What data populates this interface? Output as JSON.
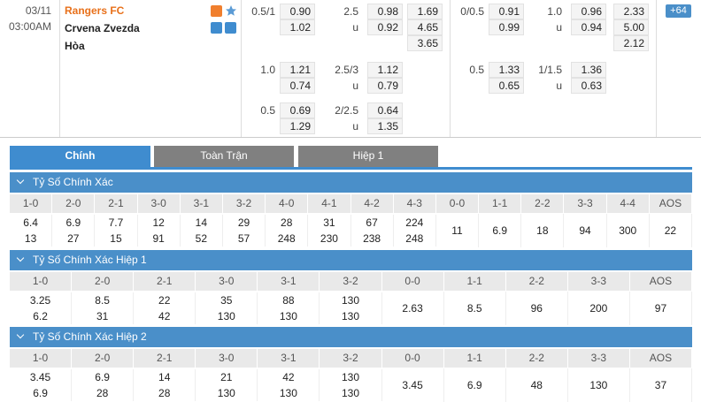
{
  "match": {
    "date": "03/11",
    "time": "03:00AM",
    "home": "Rangers FC",
    "away": "Crvena Zvezda",
    "draw": "Hòa"
  },
  "full_time": {
    "rows": [
      {
        "handicap": "0.5/1",
        "home": "0.90",
        "away": "1.02",
        "total": "2.5",
        "over": "0.98",
        "under_mark": "u",
        "under": "0.92"
      },
      {
        "handicap": "1.0",
        "home": "1.21",
        "away": "0.74",
        "total": "2.5/3",
        "over": "1.12",
        "under_mark": "u",
        "under": "0.79"
      },
      {
        "handicap": "0.5",
        "home": "0.69",
        "away": "1.29",
        "total": "2/2.5",
        "over": "0.64",
        "under_mark": "u",
        "under": "1.35"
      }
    ],
    "one_x_two": [
      "1.69",
      "4.65",
      "3.65"
    ]
  },
  "half_time": {
    "rows": [
      {
        "handicap": "0/0.5",
        "home": "0.91",
        "away": "0.99",
        "total": "1.0",
        "over": "0.96",
        "under_mark": "u",
        "under": "0.94"
      },
      {
        "handicap": "0.5",
        "home": "1.33",
        "away": "0.65",
        "total": "1/1.5",
        "over": "1.36",
        "under_mark": "u",
        "under": "0.63"
      }
    ],
    "one_x_two": [
      "2.33",
      "5.00",
      "2.12"
    ]
  },
  "more_button": "+64",
  "tabs": [
    "Chính",
    "Toàn Trận",
    "Hiệp 1"
  ],
  "sections": [
    {
      "title": "Tỷ Số Chính Xác",
      "columns": [
        "1-0",
        "2-0",
        "2-1",
        "3-0",
        "3-1",
        "3-2",
        "4-0",
        "4-1",
        "4-2",
        "4-3",
        "0-0",
        "1-1",
        "2-2",
        "3-3",
        "4-4",
        "AOS"
      ],
      "odds": [
        [
          "6.4",
          "13"
        ],
        [
          "6.9",
          "27"
        ],
        [
          "7.7",
          "15"
        ],
        [
          "12",
          "91"
        ],
        [
          "14",
          "52"
        ],
        [
          "29",
          "57"
        ],
        [
          "28",
          "248"
        ],
        [
          "31",
          "230"
        ],
        [
          "67",
          "238"
        ],
        [
          "224",
          "248"
        ],
        [
          "11"
        ],
        [
          "6.9"
        ],
        [
          "18"
        ],
        [
          "94"
        ],
        [
          "300"
        ],
        [
          "22"
        ]
      ]
    },
    {
      "title": "Tỷ Số Chính Xác Hiệp 1",
      "columns": [
        "1-0",
        "2-0",
        "2-1",
        "3-0",
        "3-1",
        "3-2",
        "0-0",
        "1-1",
        "2-2",
        "3-3",
        "AOS"
      ],
      "odds": [
        [
          "3.25",
          "6.2"
        ],
        [
          "8.5",
          "31"
        ],
        [
          "22",
          "42"
        ],
        [
          "35",
          "130"
        ],
        [
          "88",
          "130"
        ],
        [
          "130",
          "130"
        ],
        [
          "2.63"
        ],
        [
          "8.5"
        ],
        [
          "96"
        ],
        [
          "200"
        ],
        [
          "97"
        ]
      ]
    },
    {
      "title": "Tỷ Số Chính Xác Hiệp 2",
      "columns": [
        "1-0",
        "2-0",
        "2-1",
        "3-0",
        "3-1",
        "3-2",
        "0-0",
        "1-1",
        "2-2",
        "3-3",
        "AOS"
      ],
      "odds": [
        [
          "3.45",
          "6.9"
        ],
        [
          "6.9",
          "28"
        ],
        [
          "14",
          "28"
        ],
        [
          "21",
          "130"
        ],
        [
          "42",
          "130"
        ],
        [
          "130",
          "130"
        ],
        [
          "3.45"
        ],
        [
          "6.9"
        ],
        [
          "48"
        ],
        [
          "130"
        ],
        [
          "37"
        ]
      ]
    }
  ]
}
